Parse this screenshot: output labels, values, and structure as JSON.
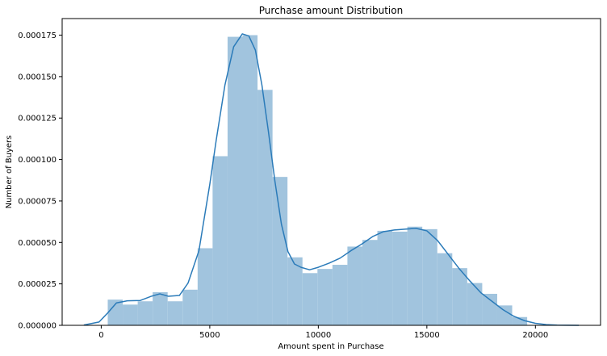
{
  "chart_data": {
    "type": "histogram",
    "title": "Purchase amount Distribution",
    "xlabel": "Amount spent in Purchase",
    "ylabel": "Number of Buyers",
    "xlim": [
      -1800,
      23000
    ],
    "ylim": [
      0,
      0.000185
    ],
    "x_ticks": [
      0,
      5000,
      10000,
      15000,
      20000
    ],
    "x_tick_labels": [
      "0",
      "5000",
      "10000",
      "15000",
      "20000"
    ],
    "y_ticks": [
      0,
      2.5e-05,
      5e-05,
      7.5e-05,
      0.0001,
      0.000125,
      0.00015,
      0.000175
    ],
    "y_tick_labels": [
      "0.000000",
      "0.000025",
      "0.000050",
      "0.000075",
      "0.000100",
      "0.000125",
      "0.000150",
      "0.000175"
    ],
    "grid": false,
    "legend": "none",
    "bar_color": "#a1c4de",
    "kde_color": "#2b7bb9",
    "bins": [
      {
        "x0": 300,
        "x1": 990,
        "density": 1.55e-05
      },
      {
        "x0": 990,
        "x1": 1680,
        "density": 1.25e-05
      },
      {
        "x0": 1680,
        "x1": 2370,
        "density": 1.45e-05
      },
      {
        "x0": 2370,
        "x1": 3060,
        "density": 2e-05
      },
      {
        "x0": 3060,
        "x1": 3750,
        "density": 1.45e-05
      },
      {
        "x0": 3750,
        "x1": 4440,
        "density": 2.15e-05
      },
      {
        "x0": 4440,
        "x1": 5130,
        "density": 4.65e-05
      },
      {
        "x0": 5130,
        "x1": 5820,
        "density": 0.000102
      },
      {
        "x0": 5820,
        "x1": 6510,
        "density": 0.000174
      },
      {
        "x0": 6510,
        "x1": 7200,
        "density": 0.000175
      },
      {
        "x0": 7200,
        "x1": 7890,
        "density": 0.000142
      },
      {
        "x0": 7890,
        "x1": 8580,
        "density": 8.95e-05
      },
      {
        "x0": 8580,
        "x1": 9270,
        "density": 4.1e-05
      },
      {
        "x0": 9270,
        "x1": 9960,
        "density": 3.15e-05
      },
      {
        "x0": 9960,
        "x1": 10650,
        "density": 3.4e-05
      },
      {
        "x0": 10650,
        "x1": 11340,
        "density": 3.65e-05
      },
      {
        "x0": 11340,
        "x1": 12030,
        "density": 4.75e-05
      },
      {
        "x0": 12030,
        "x1": 12720,
        "density": 5.15e-05
      },
      {
        "x0": 12720,
        "x1": 13410,
        "density": 5.7e-05
      },
      {
        "x0": 13410,
        "x1": 14100,
        "density": 5.65e-05
      },
      {
        "x0": 14100,
        "x1": 14790,
        "density": 5.95e-05
      },
      {
        "x0": 14790,
        "x1": 15480,
        "density": 5.8e-05
      },
      {
        "x0": 15480,
        "x1": 16170,
        "density": 4.35e-05
      },
      {
        "x0": 16170,
        "x1": 16860,
        "density": 3.45e-05
      },
      {
        "x0": 16860,
        "x1": 17550,
        "density": 2.55e-05
      },
      {
        "x0": 17550,
        "x1": 18240,
        "density": 1.9e-05
      },
      {
        "x0": 18240,
        "x1": 18930,
        "density": 1.2e-05
      },
      {
        "x0": 18930,
        "x1": 19620,
        "density": 5e-06
      }
    ],
    "kde": {
      "x": [
        -800,
        -100,
        300,
        700,
        1200,
        1800,
        2300,
        2700,
        3100,
        3600,
        4000,
        4500,
        5000,
        5300,
        5700,
        6100,
        6500,
        6800,
        7100,
        7400,
        7700,
        8000,
        8300,
        8600,
        8900,
        9200,
        9600,
        10000,
        10500,
        11000,
        11500,
        12000,
        12500,
        13000,
        13500,
        14000,
        14500,
        15000,
        15500,
        16000,
        16500,
        17000,
        17500,
        18000,
        18500,
        19000,
        19500,
        20000,
        20500,
        21000,
        22000
      ],
      "y": [
        2e-07,
        2e-06,
        7.5e-06,
        1.35e-05,
        1.48e-05,
        1.5e-05,
        1.75e-05,
        1.9e-05,
        1.75e-05,
        1.8e-05,
        2.55e-05,
        4.5e-05,
        8.5e-05,
        0.000112,
        0.000145,
        0.000168,
        0.0001758,
        0.0001745,
        0.000166,
        0.000145,
        0.000117,
        8.7e-05,
        6.1e-05,
        4.45e-05,
        3.7e-05,
        3.5e-05,
        3.35e-05,
        3.5e-05,
        3.75e-05,
        4.05e-05,
        4.5e-05,
        4.9e-05,
        5.35e-05,
        5.65e-05,
        5.75e-05,
        5.8e-05,
        5.85e-05,
        5.7e-05,
        5.1e-05,
        4.25e-05,
        3.4e-05,
        2.65e-05,
        1.95e-05,
        1.45e-05,
        9.5e-06,
        5.5e-06,
        2.8e-06,
        1.2e-06,
        4e-07,
        1e-07,
        0.0
      ]
    }
  }
}
